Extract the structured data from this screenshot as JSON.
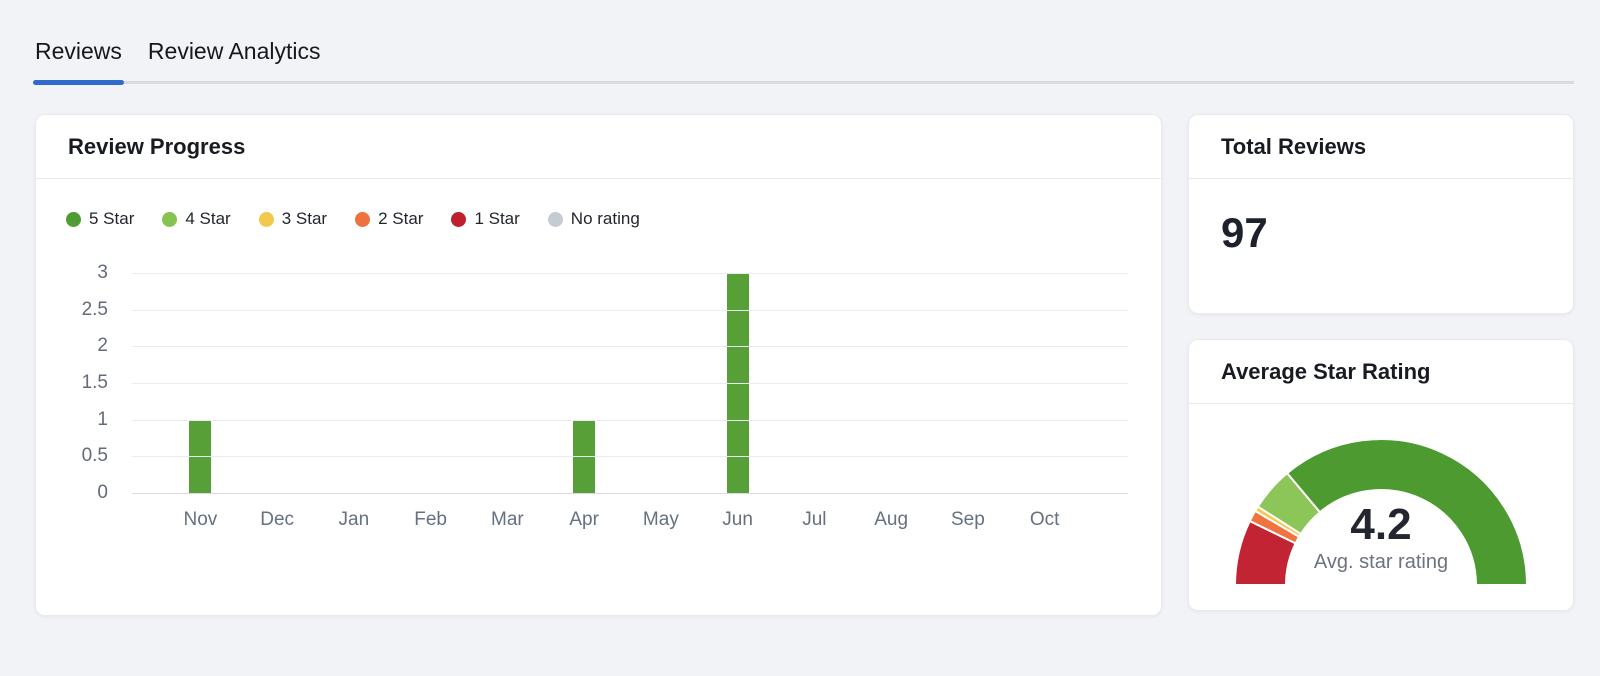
{
  "tabs": {
    "items": [
      {
        "label": "Reviews",
        "active": true
      },
      {
        "label": "Review Analytics",
        "active": false
      }
    ],
    "active_color": "#2e6bca"
  },
  "review_progress": {
    "title": "Review Progress",
    "legend": [
      {
        "label": "5 Star",
        "color": "#4f9d30"
      },
      {
        "label": "4 Star",
        "color": "#86c34f"
      },
      {
        "label": "3 Star",
        "color": "#f3c94d"
      },
      {
        "label": "2 Star",
        "color": "#ee7140"
      },
      {
        "label": "1 Star",
        "color": "#c0202e"
      },
      {
        "label": "No rating",
        "color": "#c6cad3"
      }
    ]
  },
  "total_reviews": {
    "title": "Total Reviews",
    "value": "97"
  },
  "average_star_rating": {
    "title": "Average Star Rating",
    "value": "4.2",
    "caption": "Avg. star rating"
  },
  "chart_data": [
    {
      "type": "bar",
      "title": "Review Progress",
      "categories": [
        "Nov",
        "Dec",
        "Jan",
        "Feb",
        "Mar",
        "Apr",
        "May",
        "Jun",
        "Jul",
        "Aug",
        "Sep",
        "Oct"
      ],
      "series": [
        {
          "name": "5 Star",
          "color": "#57a037",
          "values": [
            1,
            0,
            0,
            0,
            0,
            1,
            0,
            3,
            0,
            0,
            0,
            0
          ]
        }
      ],
      "xlabel": "",
      "ylabel": "",
      "ylim": [
        0,
        3
      ],
      "yticks": [
        0,
        0.5,
        1,
        1.5,
        2,
        2.5,
        3
      ],
      "grid": true,
      "legend_position": "top-left"
    },
    {
      "type": "pie",
      "variant": "half-donut-gauge",
      "title": "Average Star Rating",
      "value": "4.2",
      "caption": "Avg. star rating",
      "segments": [
        {
          "label": "1 Star",
          "color": "#c32433",
          "degrees": 26
        },
        {
          "label": "2 Star",
          "color": "#ef7440",
          "degrees": 4.5
        },
        {
          "label": "3 Star",
          "color": "#f5c84c",
          "degrees": 2
        },
        {
          "label": "4 Star",
          "color": "#8cc558",
          "degrees": 17.5
        },
        {
          "label": "5 Star",
          "color": "#4d9b30",
          "degrees": 130
        }
      ],
      "total_degrees": 180
    }
  ]
}
